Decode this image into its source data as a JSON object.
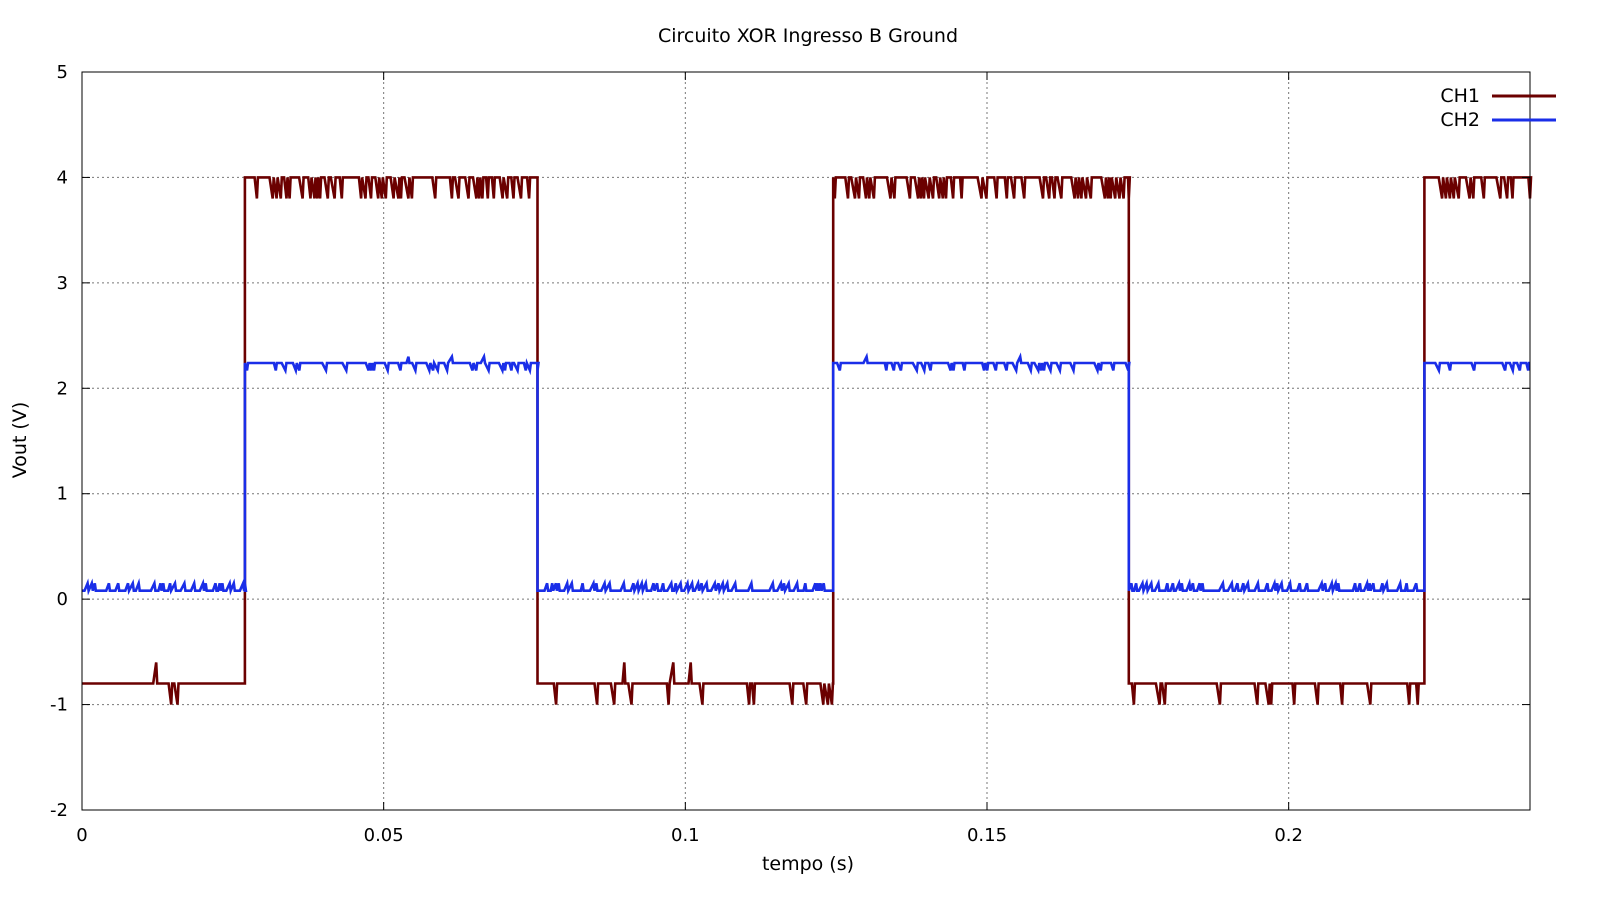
{
  "chart_data": {
    "type": "line",
    "title": "Circuito XOR Ingresso B Ground",
    "xlabel": "tempo (s)",
    "ylabel": "Vout (V)",
    "xlim": [
      0,
      0.24
    ],
    "ylim": [
      -2,
      5
    ],
    "xticks": [
      0,
      0.05,
      0.1,
      0.15,
      0.2
    ],
    "xtick_labels": [
      "0",
      "0.05",
      "0.1",
      "0.15",
      "0.2"
    ],
    "yticks": [
      -2,
      -1,
      0,
      1,
      2,
      3,
      4,
      5
    ],
    "ytick_labels": [
      "-2",
      "-1",
      "0",
      "1",
      "2",
      "3",
      "4",
      "5"
    ],
    "grid": true,
    "legend_position": "top-right",
    "series": [
      {
        "name": "CH1",
        "color": "#6b0000",
        "x": [
          0,
          0.027,
          0.027,
          0.0755,
          0.0755,
          0.1245,
          0.1245,
          0.1735,
          0.1735,
          0.2225,
          0.2225,
          0.24
        ],
        "y": [
          -0.8,
          -0.8,
          4.0,
          4.0,
          -0.8,
          -0.8,
          4.0,
          4.0,
          -0.8,
          -0.8,
          4.0,
          4.0
        ],
        "noise_low": -1.0,
        "noise_high": 3.8
      },
      {
        "name": "CH2",
        "color": "#1a2ee8",
        "x": [
          0,
          0.027,
          0.027,
          0.0755,
          0.0755,
          0.1245,
          0.1245,
          0.1735,
          0.1735,
          0.2225,
          0.2225,
          0.24
        ],
        "y": [
          0.08,
          0.08,
          2.24,
          2.24,
          0.08,
          0.08,
          2.24,
          2.24,
          0.08,
          0.08,
          2.24,
          2.24
        ],
        "noise_low_level": 0.15,
        "noise_high_level": 2.17
      }
    ]
  }
}
